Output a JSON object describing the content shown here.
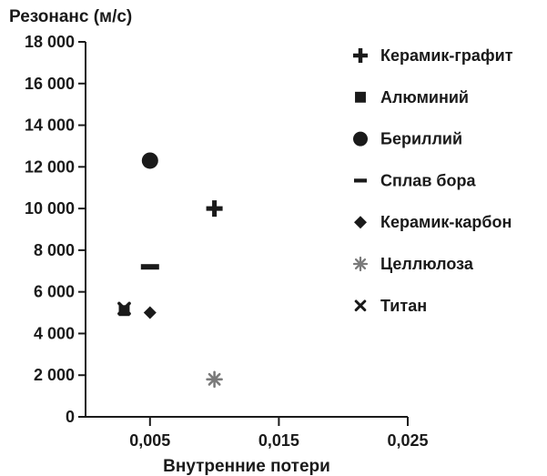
{
  "chart_data": {
    "type": "scatter",
    "title": "",
    "ylabel": "Резонанс (м/с)",
    "xlabel": "Внутренние потери",
    "ylim": [
      0,
      18000
    ],
    "xlim": [
      0,
      0.025
    ],
    "y_ticks": [
      0,
      2000,
      4000,
      6000,
      8000,
      10000,
      12000,
      14000,
      16000,
      18000
    ],
    "y_tick_labels": [
      "0",
      "2 000",
      "4 000",
      "6 000",
      "8 000",
      "10 000",
      "12 000",
      "14 000",
      "16 000",
      "18 000"
    ],
    "x_ticks": [
      0.005,
      0.015,
      0.025
    ],
    "x_tick_labels": [
      "0,005",
      "0,015",
      "0,025"
    ],
    "grid": false,
    "legend_position": "right",
    "series": [
      {
        "name": "Керамик-графит",
        "marker": "plus-icon",
        "color": "#1a1a1a",
        "x": [
          0.01
        ],
        "y": [
          10000
        ]
      },
      {
        "name": "Алюминий",
        "marker": "square-icon",
        "color": "#1a1a1a",
        "x": [
          0.003
        ],
        "y": [
          5100
        ]
      },
      {
        "name": "Бериллий",
        "marker": "circle-icon",
        "color": "#1a1a1a",
        "x": [
          0.005
        ],
        "y": [
          12300
        ]
      },
      {
        "name": "Сплав бора",
        "marker": "dash-icon",
        "color": "#1a1a1a",
        "x": [
          0.005
        ],
        "y": [
          7200
        ]
      },
      {
        "name": "Керамик-карбон",
        "marker": "diamond-icon",
        "color": "#1a1a1a",
        "x": [
          0.005
        ],
        "y": [
          5000
        ]
      },
      {
        "name": "Целлюлоза",
        "marker": "asterisk-icon",
        "color": "#7a7a7a",
        "x": [
          0.01
        ],
        "y": [
          1800
        ]
      },
      {
        "name": "Титан",
        "marker": "cross-icon",
        "color": "#1a1a1a",
        "x": [
          0.003
        ],
        "y": [
          5200
        ]
      }
    ]
  }
}
